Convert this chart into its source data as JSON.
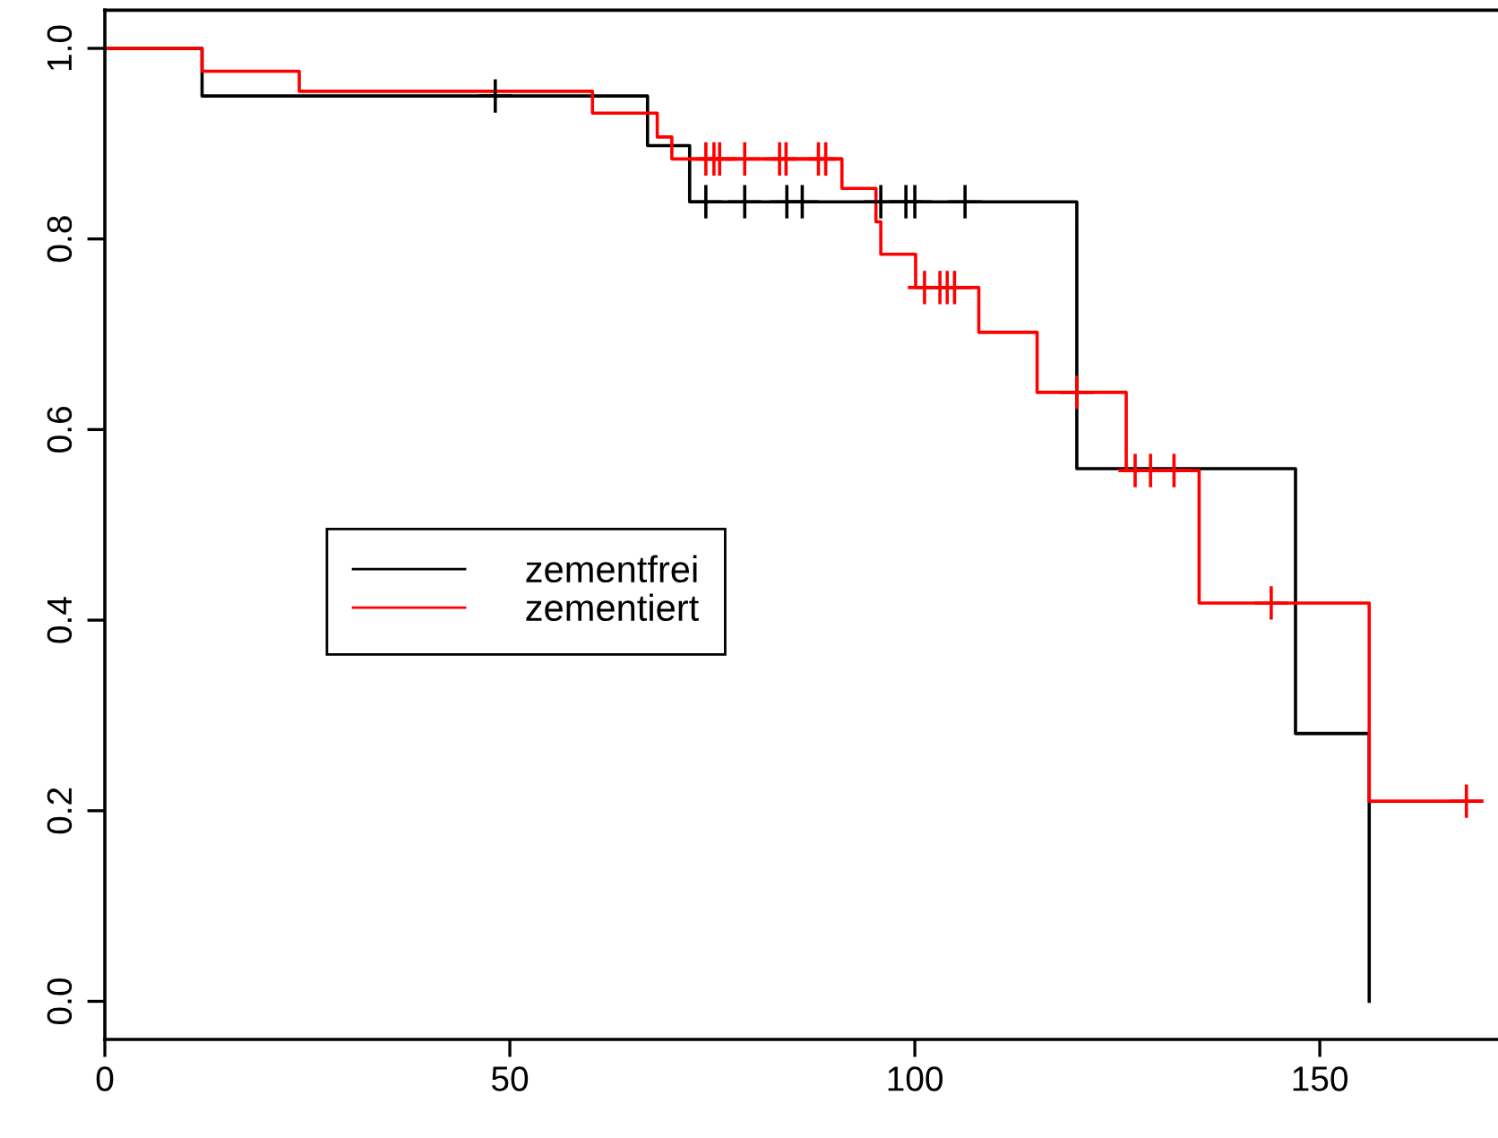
{
  "chart_data": {
    "type": "step",
    "series": [
      {
        "name": "zementfrei",
        "color": "#000000",
        "x": [
          0,
          12,
          67,
          72.2,
          120,
          147,
          156.1
        ],
        "values": [
          1.0,
          0.95,
          0.898,
          0.839,
          0.559,
          0.281,
          0.0
        ]
      },
      {
        "name": "zementiert",
        "color": "#ff0000",
        "x": [
          0,
          12,
          24,
          60.2,
          68.2,
          70,
          91,
          95.2,
          95.8,
          100.1,
          107.9,
          115.1,
          126.1,
          135.1,
          156.1,
          170
        ],
        "values": [
          1.0,
          0.976,
          0.955,
          0.932,
          0.907,
          0.884,
          0.853,
          0.818,
          0.784,
          0.749,
          0.702,
          0.639,
          0.557,
          0.418,
          0.21,
          0.21
        ]
      },
      {
        "type": "scatter",
        "marker": "cross",
        "color": "#000000",
        "x": [
          48.2,
          74.2,
          79,
          84.2,
          86.1,
          95.8,
          98.9,
          100,
          106.2
        ],
        "values": [
          0.95,
          0.839,
          0.839,
          0.839,
          0.839,
          0.839,
          0.839,
          0.839,
          0.839
        ]
      },
      {
        "type": "scatter",
        "marker": "cross",
        "color": "#ff0000",
        "x": [
          74.2,
          75.2,
          75.9,
          79,
          83.3,
          84.1,
          88.1,
          89,
          101.2,
          103.1,
          104,
          104.9,
          120,
          127.2,
          129.1,
          132,
          144,
          168.1
        ],
        "values": [
          0.884,
          0.884,
          0.884,
          0.884,
          0.884,
          0.884,
          0.884,
          0.884,
          0.749,
          0.749,
          0.749,
          0.749,
          0.639,
          0.557,
          0.557,
          0.557,
          0.418,
          0.21
        ]
      }
    ],
    "xlim": [
      0,
      172
    ],
    "ylim": [
      -0.04,
      1.04
    ],
    "xticks": [
      0,
      50,
      100,
      150
    ],
    "yticks": [
      {
        "value": 0,
        "label": "0.0"
      },
      0.2,
      0.4,
      0.6,
      0.8,
      {
        "value": 1,
        "label": "1.0"
      }
    ],
    "grid": false,
    "legend": "center left"
  }
}
